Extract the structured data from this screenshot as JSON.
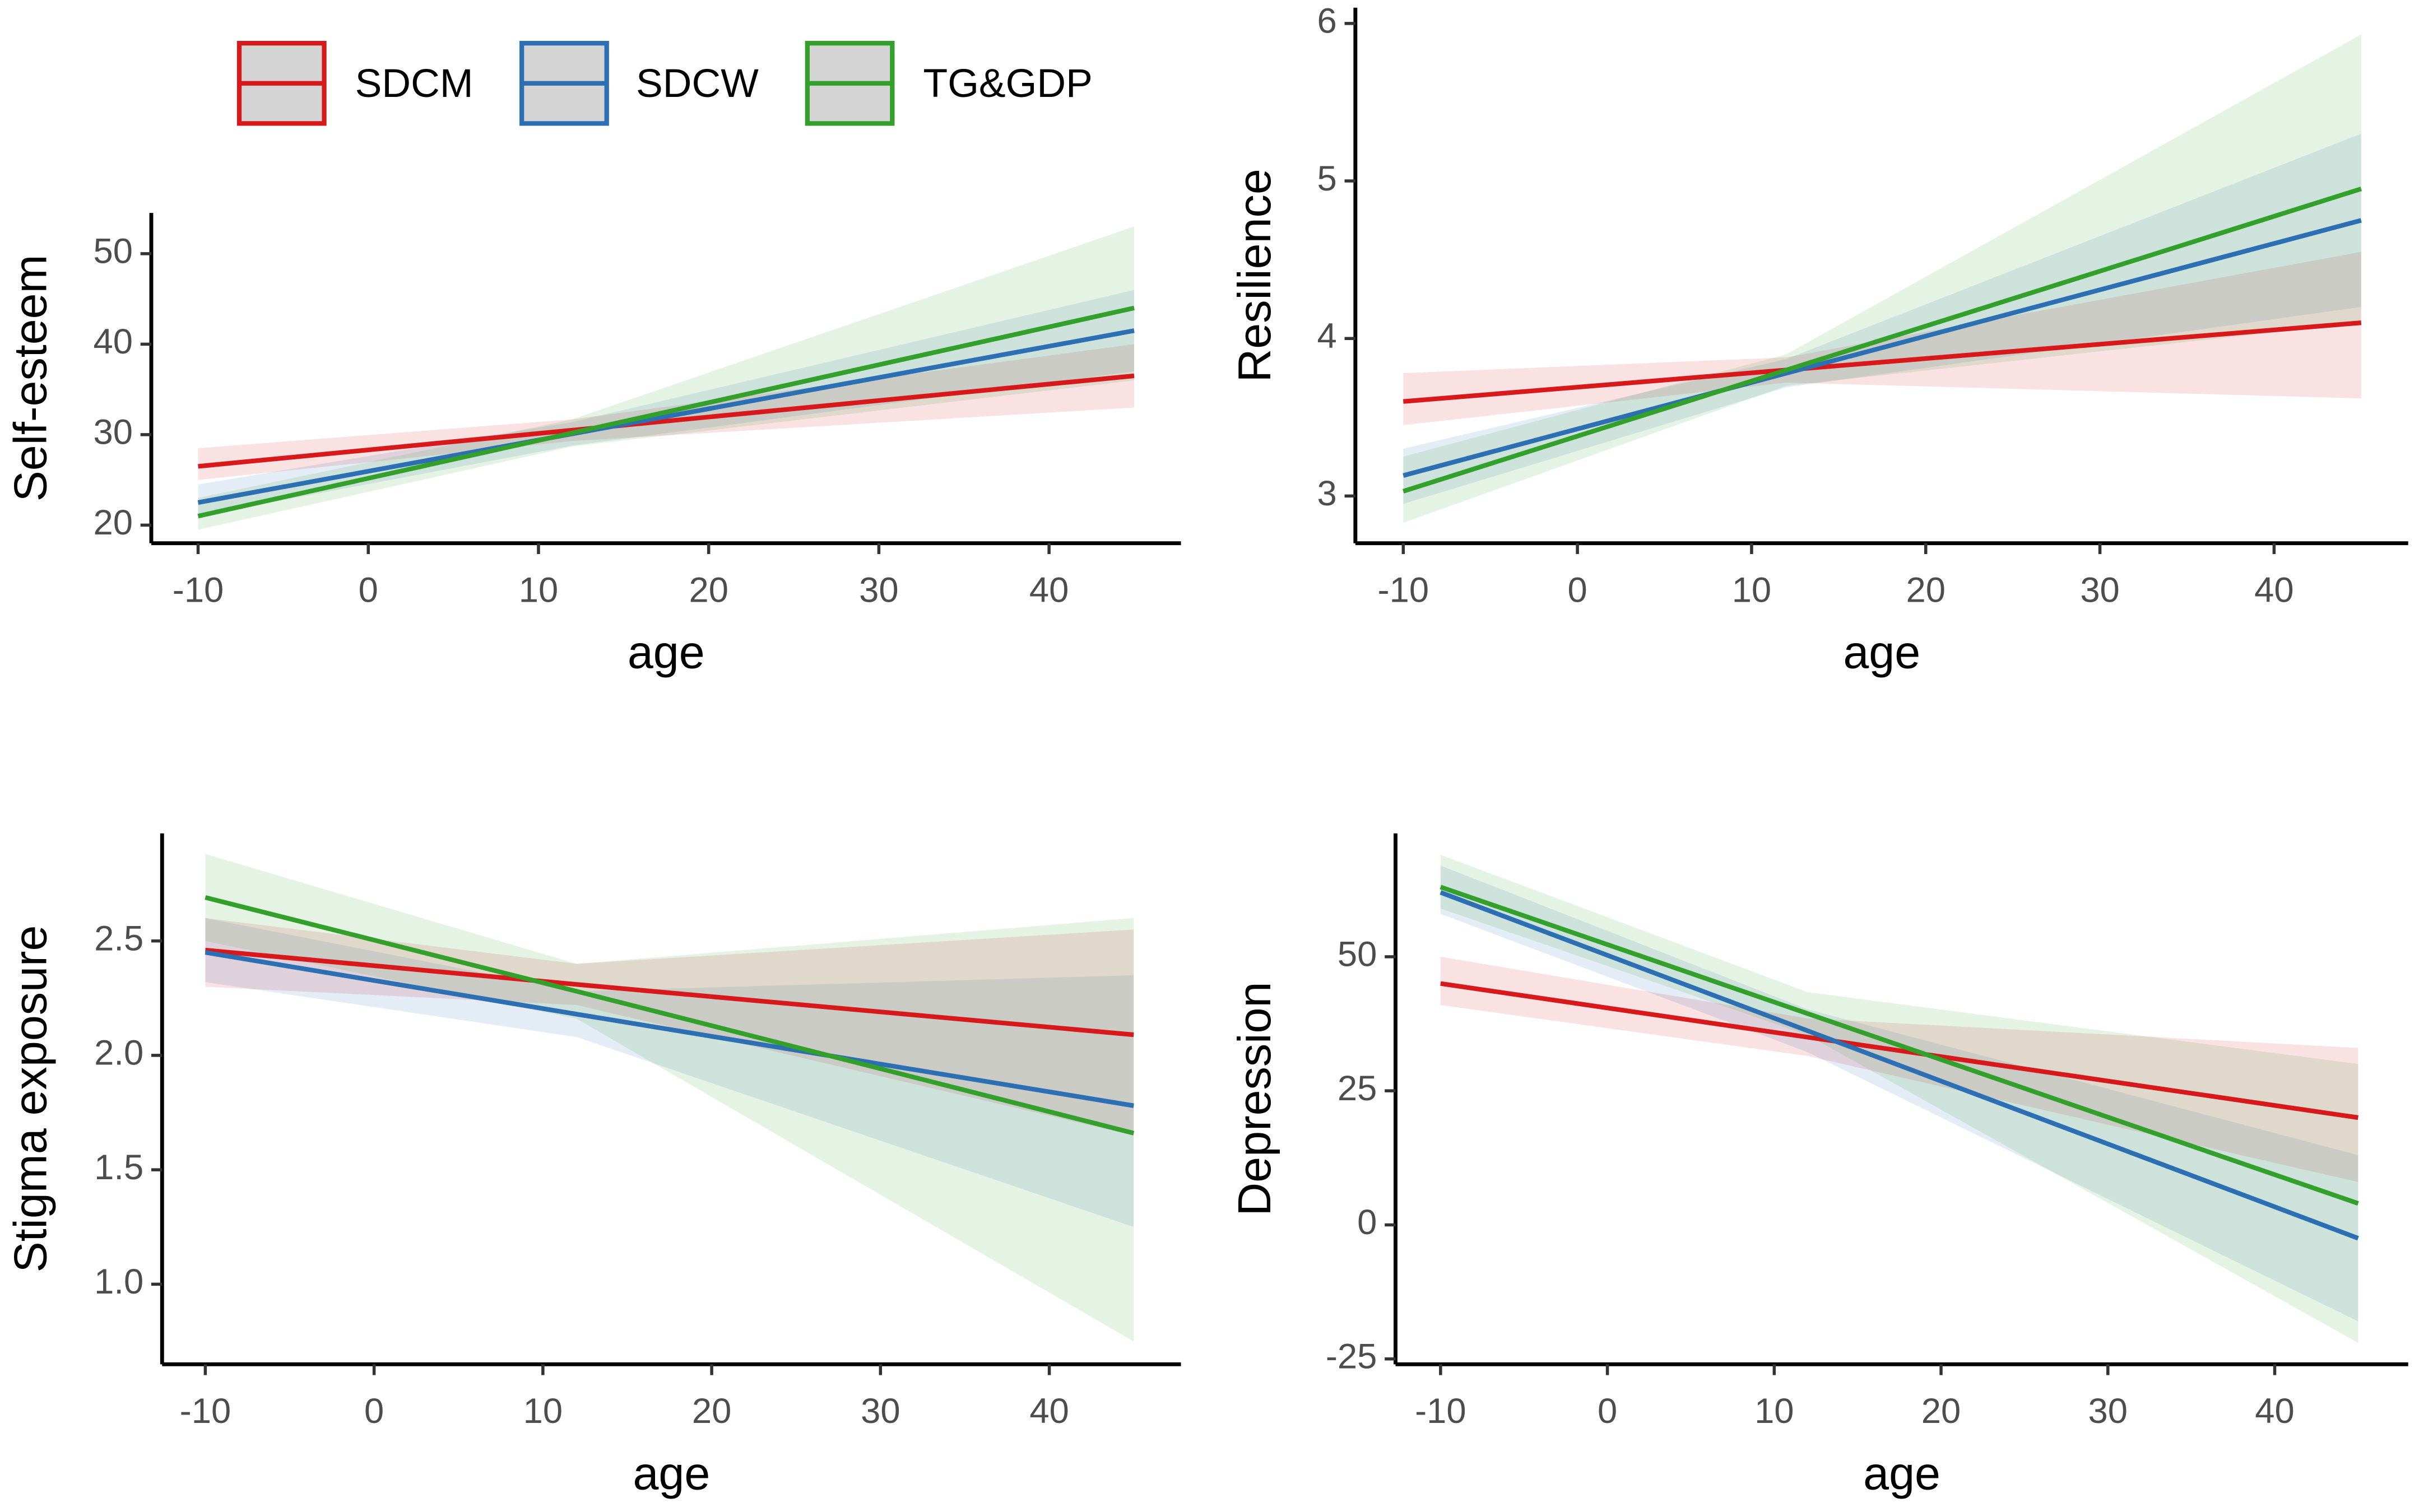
{
  "chart_data": [
    {
      "type": "line",
      "y_label": "Self-esteem",
      "x_label": "age",
      "x": [
        -10,
        12,
        45
      ],
      "xlim": [
        -12.75,
        47.75
      ],
      "xticks": [
        -10,
        0,
        10,
        20,
        30,
        40
      ],
      "ylim": [
        18,
        54.5
      ],
      "yticks": [
        20,
        30,
        40,
        50
      ],
      "series": [
        {
          "name": "SDCM",
          "color": "#d7191c",
          "values": [
            26.5,
            30.5,
            36.5
          ],
          "lower": [
            25,
            29.3,
            33
          ],
          "upper": [
            28.5,
            31.7,
            40
          ]
        },
        {
          "name": "SDCW",
          "color": "#2c6fb3",
          "values": [
            22.5,
            30.1,
            41.5
          ],
          "lower": [
            21,
            28.8,
            37
          ],
          "upper": [
            24.5,
            31.4,
            46
          ]
        },
        {
          "name": "TG&GDP",
          "color": "#33a02c",
          "values": [
            21,
            30.2,
            44
          ],
          "lower": [
            19.5,
            28.7,
            36
          ],
          "upper": [
            23,
            31.7,
            53
          ]
        }
      ]
    },
    {
      "type": "line",
      "y_label": "Resilience",
      "x_label": "age",
      "x": [
        -10,
        12,
        45
      ],
      "xlim": [
        -12.75,
        47.7
      ],
      "xticks": [
        -10,
        0,
        10,
        20,
        30,
        40
      ],
      "ylim": [
        2.7,
        6.1
      ],
      "yticks": [
        3,
        4,
        5,
        6
      ],
      "series": [
        {
          "color": "#d7191c",
          "values": [
            3.6,
            3.8,
            4.1
          ],
          "lower": [
            3.45,
            3.72,
            3.62
          ],
          "upper": [
            3.78,
            3.88,
            4.55
          ]
        },
        {
          "color": "#2c6fb3",
          "values": [
            3.13,
            3.78,
            4.75
          ],
          "lower": [
            2.95,
            3.69,
            4.2
          ],
          "upper": [
            3.3,
            3.87,
            5.3
          ]
        },
        {
          "color": "#33a02c",
          "values": [
            3.03,
            3.8,
            4.95
          ],
          "lower": [
            2.83,
            3.7,
            4.1
          ],
          "upper": [
            3.25,
            3.9,
            5.93
          ]
        }
      ]
    },
    {
      "type": "line",
      "y_label": "Stigma exposure",
      "x_label": "age",
      "x": [
        -10,
        12,
        45
      ],
      "xlim": [
        -12.56,
        47.8
      ],
      "xticks": [
        -10,
        0,
        10,
        20,
        30,
        40
      ],
      "ylim": [
        0.65,
        2.97
      ],
      "yticks": [
        {
          "value": 1,
          "label": "1.0"
        },
        1.5,
        {
          "value": 2,
          "label": "2.0"
        },
        2.5
      ],
      "series": [
        {
          "color": "#d7191c",
          "values": [
            2.46,
            2.31,
            2.09
          ],
          "lower": [
            2.3,
            2.22,
            1.65
          ],
          "upper": [
            2.6,
            2.4,
            2.55
          ]
        },
        {
          "color": "#2c6fb3",
          "values": [
            2.45,
            2.18,
            1.78
          ],
          "lower": [
            2.32,
            2.08,
            1.25
          ],
          "upper": [
            2.6,
            2.28,
            2.35
          ]
        },
        {
          "color": "#33a02c",
          "values": [
            2.69,
            2.28,
            1.66
          ],
          "lower": [
            2.5,
            2.16,
            0.75
          ],
          "upper": [
            2.88,
            2.4,
            2.6
          ]
        }
      ]
    },
    {
      "type": "line",
      "y_label": "Depression",
      "x_label": "age",
      "x": [
        -10,
        12,
        45
      ],
      "xlim": [
        -12.7,
        48
      ],
      "xticks": [
        -10,
        0,
        10,
        20,
        30,
        40
      ],
      "ylim": [
        -26,
        73
      ],
      "yticks": [
        -25,
        0,
        25,
        50
      ],
      "series": [
        {
          "color": "#d7191c",
          "values": [
            45,
            35,
            20
          ],
          "lower": [
            41,
            31.5,
            8
          ],
          "upper": [
            50,
            38.5,
            33
          ]
        },
        {
          "color": "#2c6fb3",
          "values": [
            62,
            36.2,
            -2.5
          ],
          "lower": [
            58,
            32.2,
            -18
          ],
          "upper": [
            67,
            40.2,
            13
          ]
        },
        {
          "color": "#33a02c",
          "values": [
            63,
            39.4,
            4
          ],
          "lower": [
            59,
            35.4,
            -22
          ],
          "upper": [
            69,
            43.4,
            30
          ]
        }
      ]
    }
  ]
}
